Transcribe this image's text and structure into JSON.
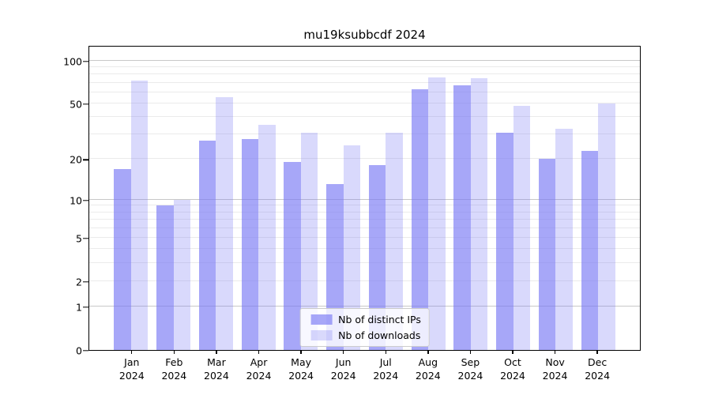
{
  "title": "mu19ksubbcdf 2024",
  "chart_data": {
    "type": "bar",
    "title": "mu19ksubbcdf 2024",
    "year": "2024",
    "months": [
      "Jan",
      "Feb",
      "Mar",
      "Apr",
      "May",
      "Jun",
      "Jul",
      "Aug",
      "Sep",
      "Oct",
      "Nov",
      "Dec"
    ],
    "series": [
      {
        "name": "Nb of distinct IPs",
        "color": "rgba(120,120,245,0.65)",
        "values": [
          17,
          9,
          27,
          28,
          19,
          13,
          18,
          63,
          67,
          31,
          20,
          23
        ]
      },
      {
        "name": "Nb of downloads",
        "color": "rgba(120,120,245,0.28)",
        "values": [
          72,
          10,
          55,
          35,
          31,
          25,
          31,
          76,
          75,
          48,
          33,
          50
        ]
      }
    ],
    "y_ticks": [
      0,
      1,
      2,
      5,
      10,
      20,
      50,
      100
    ],
    "y_scale": "log1p",
    "y_axis_top": 125,
    "gridlines": {
      "major": [
        1,
        10,
        100
      ],
      "minor": [
        2,
        3,
        4,
        5,
        6,
        7,
        8,
        9,
        20,
        30,
        40,
        50,
        60,
        70,
        80,
        90
      ]
    },
    "legend_position": "lower center",
    "xlabel": "",
    "ylabel": ""
  },
  "colors": {
    "bar_distinct_ips": "rgba(120,120,245,0.65)",
    "bar_downloads": "rgba(120,120,245,0.28)",
    "grid_major": "#c8c8c8",
    "grid_minor": "#ebebeb",
    "axis": "#000000",
    "legend_border": "#cccccc",
    "legend_bg": "rgba(255,255,255,0.8)",
    "background": "#ffffff"
  }
}
